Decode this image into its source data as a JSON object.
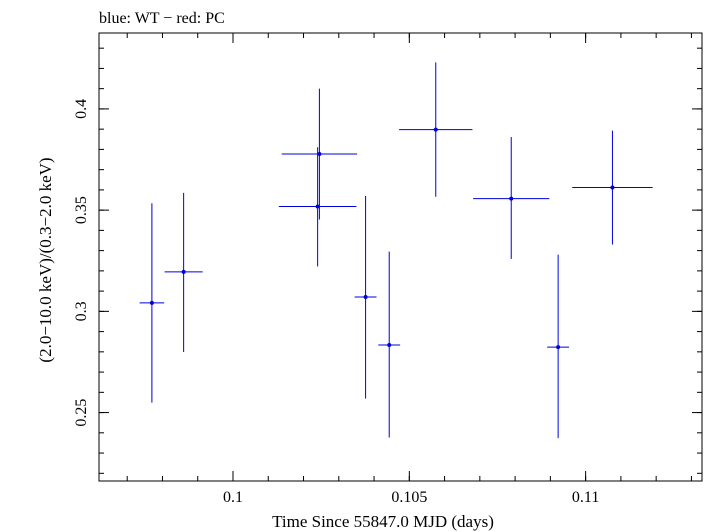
{
  "chart_data": {
    "type": "scatter",
    "title": "blue: WT − red: PC",
    "xlabel": "Time Since 55847.0 MJD (days)",
    "ylabel": "(2.0−10.0 keV)/(0.3−2.0 keV)",
    "xlim": [
      0.0962,
      0.1133
    ],
    "ylim": [
      0.2162,
      0.4375
    ],
    "x_ticks": [
      {
        "value": 0.1,
        "label": "0.1"
      },
      {
        "value": 0.105,
        "label": "0.105"
      },
      {
        "value": 0.11,
        "label": "0.11"
      }
    ],
    "y_ticks": [
      {
        "value": 0.25,
        "label": "0.25"
      },
      {
        "value": 0.3,
        "label": "0.3"
      },
      {
        "value": 0.35,
        "label": "0.35"
      },
      {
        "value": 0.4,
        "label": "0.4"
      }
    ],
    "grid": false,
    "series": [
      {
        "color": "#0000dd",
        "points": [
          {
            "x": 0.0977,
            "xerr": 0.00035,
            "y": 0.3042,
            "ylo": 0.2549,
            "yhi": 0.3534
          },
          {
            "x": 0.0986,
            "xerr": 0.00054,
            "y": 0.3195,
            "ylo": 0.2799,
            "yhi": 0.3585
          },
          {
            "x": 0.1024,
            "xerr": 0.0011,
            "y": 0.3518,
            "ylo": 0.3222,
            "yhi": 0.3811
          },
          {
            "x": 0.10245,
            "xerr": 0.00107,
            "y": 0.3777,
            "ylo": 0.3454,
            "yhi": 0.41
          },
          {
            "x": 0.10376,
            "xerr": 0.00031,
            "y": 0.3071,
            "ylo": 0.2569,
            "yhi": 0.357
          },
          {
            "x": 0.10443,
            "xerr": 0.00031,
            "y": 0.2834,
            "ylo": 0.2377,
            "yhi": 0.3295
          },
          {
            "x": 0.10575,
            "xerr": 0.00104,
            "y": 0.3898,
            "ylo": 0.3566,
            "yhi": 0.423
          },
          {
            "x": 0.10789,
            "xerr": 0.00108,
            "y": 0.3557,
            "ylo": 0.3259,
            "yhi": 0.3861
          },
          {
            "x": 0.10922,
            "xerr": 0.00031,
            "y": 0.2823,
            "ylo": 0.2374,
            "yhi": 0.328
          },
          {
            "x": 0.11076,
            "xerr": 0.00114,
            "y": 0.3612,
            "ylo": 0.333,
            "yhi": 0.3893
          }
        ]
      }
    ]
  }
}
